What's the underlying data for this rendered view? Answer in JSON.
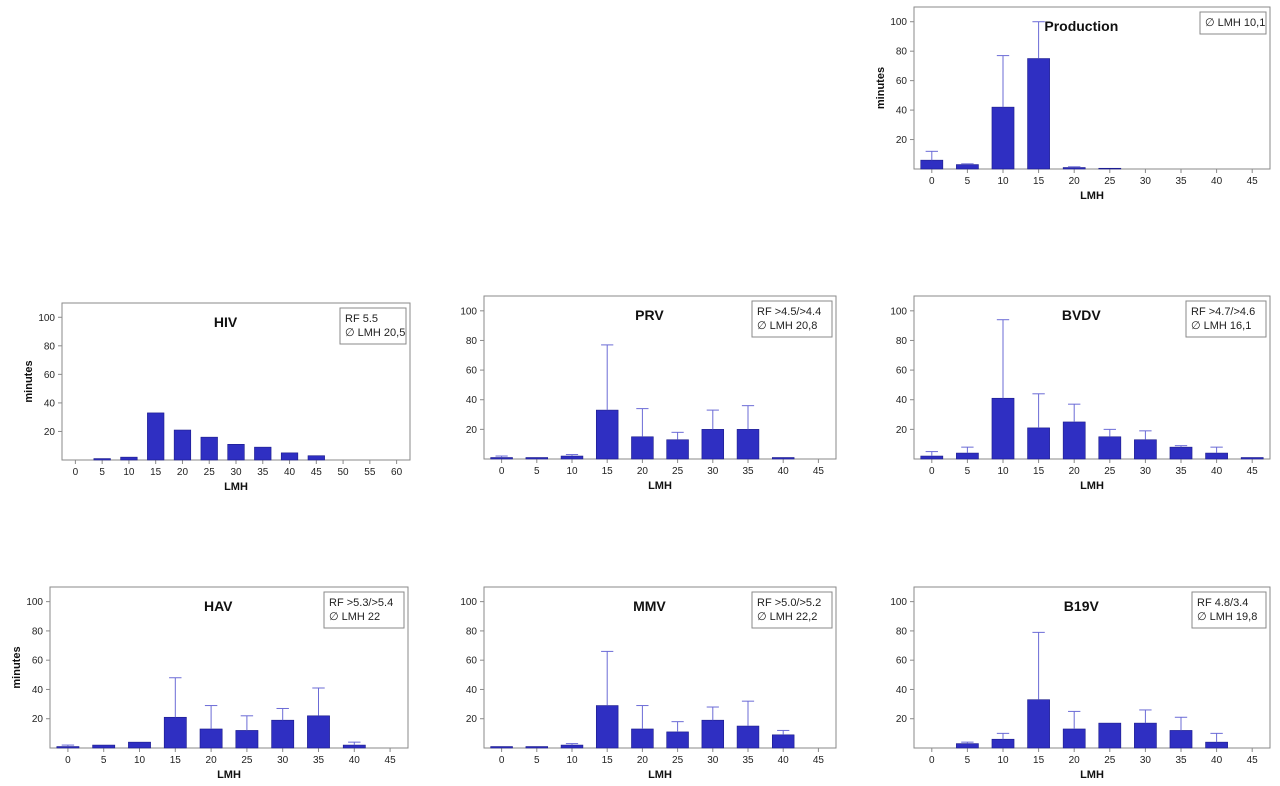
{
  "chart_data": [
    {
      "id": "production",
      "type": "bar",
      "title": "Production",
      "xlabel": "LMH",
      "ylabel": "minutes",
      "ylim": [
        0,
        110
      ],
      "yticks": [
        20,
        40,
        60,
        80,
        100
      ],
      "categories": [
        "0",
        "5",
        "10",
        "15",
        "20",
        "25",
        "30",
        "35",
        "40",
        "45"
      ],
      "values": [
        6,
        3,
        42,
        75,
        1,
        0.5,
        0,
        0,
        0,
        0
      ],
      "error_upper": [
        12,
        3.5,
        77,
        100,
        1.5,
        0.8,
        0,
        0,
        0,
        0
      ],
      "legend": [
        "∅ LMH 10,1"
      ],
      "grid": false,
      "legend_position": "top-right"
    },
    {
      "id": "hiv",
      "type": "bar",
      "title": "HIV",
      "xlabel": "LMH",
      "ylabel": "minutes",
      "ylim": [
        0,
        110
      ],
      "yticks": [
        20,
        40,
        60,
        80,
        100
      ],
      "categories": [
        "0",
        "5",
        "10",
        "15",
        "20",
        "25",
        "30",
        "35",
        "40",
        "45",
        "50",
        "55",
        "60"
      ],
      "values": [
        0,
        1,
        2,
        33,
        21,
        16,
        11,
        9,
        5,
        3,
        0,
        0,
        0
      ],
      "error_upper": [
        0,
        1,
        2,
        33,
        21,
        16,
        11,
        9,
        5,
        3,
        0,
        0,
        0
      ],
      "legend": [
        "RF 5.5",
        "∅ LMH 20,5"
      ],
      "grid": false,
      "legend_position": "top-right"
    },
    {
      "id": "prv",
      "type": "bar",
      "title": "PRV",
      "xlabel": "LMH",
      "ylabel": "",
      "ylim": [
        0,
        110
      ],
      "yticks": [
        20,
        40,
        60,
        80,
        100
      ],
      "categories": [
        "0",
        "5",
        "10",
        "15",
        "20",
        "25",
        "30",
        "35",
        "40",
        "45"
      ],
      "values": [
        1,
        1,
        2,
        33,
        15,
        13,
        20,
        20,
        1,
        0
      ],
      "error_upper": [
        2,
        1,
        3,
        77,
        34,
        18,
        33,
        36,
        1,
        0
      ],
      "legend": [
        "RF >4.5/>4.4",
        "∅ LMH 20,8"
      ],
      "grid": false,
      "legend_position": "top-right"
    },
    {
      "id": "bvdv",
      "type": "bar",
      "title": "BVDV",
      "xlabel": "LMH",
      "ylabel": "",
      "ylim": [
        0,
        110
      ],
      "yticks": [
        20,
        40,
        60,
        80,
        100
      ],
      "categories": [
        "0",
        "5",
        "10",
        "15",
        "20",
        "25",
        "30",
        "35",
        "40",
        "45"
      ],
      "values": [
        2,
        4,
        41,
        21,
        25,
        15,
        13,
        8,
        4,
        1
      ],
      "error_upper": [
        5,
        8,
        94,
        44,
        37,
        20,
        19,
        9,
        8,
        1
      ],
      "legend": [
        "RF >4.7/>4.6",
        "∅ LMH 16,1"
      ],
      "grid": false,
      "legend_position": "top-right"
    },
    {
      "id": "hav",
      "type": "bar",
      "title": "HAV",
      "xlabel": "LMH",
      "ylabel": "minutes",
      "ylim": [
        0,
        110
      ],
      "yticks": [
        20,
        40,
        60,
        80,
        100
      ],
      "categories": [
        "0",
        "5",
        "10",
        "15",
        "20",
        "25",
        "30",
        "35",
        "40",
        "45"
      ],
      "values": [
        1,
        2,
        4,
        21,
        13,
        12,
        19,
        22,
        2,
        0
      ],
      "error_upper": [
        2,
        2,
        4,
        48,
        29,
        22,
        27,
        41,
        4,
        0
      ],
      "legend": [
        "RF >5.3/>5.4",
        "∅ LMH 22"
      ],
      "grid": false,
      "legend_position": "top-right"
    },
    {
      "id": "mmv",
      "type": "bar",
      "title": "MMV",
      "xlabel": "LMH",
      "ylabel": "",
      "ylim": [
        0,
        110
      ],
      "yticks": [
        20,
        40,
        60,
        80,
        100
      ],
      "categories": [
        "0",
        "5",
        "10",
        "15",
        "20",
        "25",
        "30",
        "35",
        "40",
        "45"
      ],
      "values": [
        1,
        1,
        2,
        29,
        13,
        11,
        19,
        15,
        9,
        0
      ],
      "error_upper": [
        1,
        1,
        3,
        66,
        29,
        18,
        28,
        32,
        12,
        0
      ],
      "legend": [
        "RF >5.0/>5.2",
        "∅ LMH 22,2"
      ],
      "grid": false,
      "legend_position": "top-right"
    },
    {
      "id": "b19v",
      "type": "bar",
      "title": "B19V",
      "xlabel": "LMH",
      "ylabel": "",
      "ylim": [
        0,
        110
      ],
      "yticks": [
        20,
        40,
        60,
        80,
        100
      ],
      "categories": [
        "0",
        "5",
        "10",
        "15",
        "20",
        "25",
        "30",
        "35",
        "40",
        "45"
      ],
      "values": [
        0,
        3,
        6,
        33,
        13,
        17,
        17,
        12,
        4,
        0
      ],
      "error_upper": [
        0,
        4,
        10,
        79,
        25,
        17,
        26,
        21,
        10,
        0
      ],
      "legend": [
        "RF 4.8/3.4",
        "∅ LMH 19,8"
      ],
      "grid": false,
      "legend_position": "top-right"
    }
  ],
  "colors": {
    "bar_fill": "#2f2fc2",
    "error_bar": "#6b6bd6",
    "axis": "#8a8a8a"
  }
}
